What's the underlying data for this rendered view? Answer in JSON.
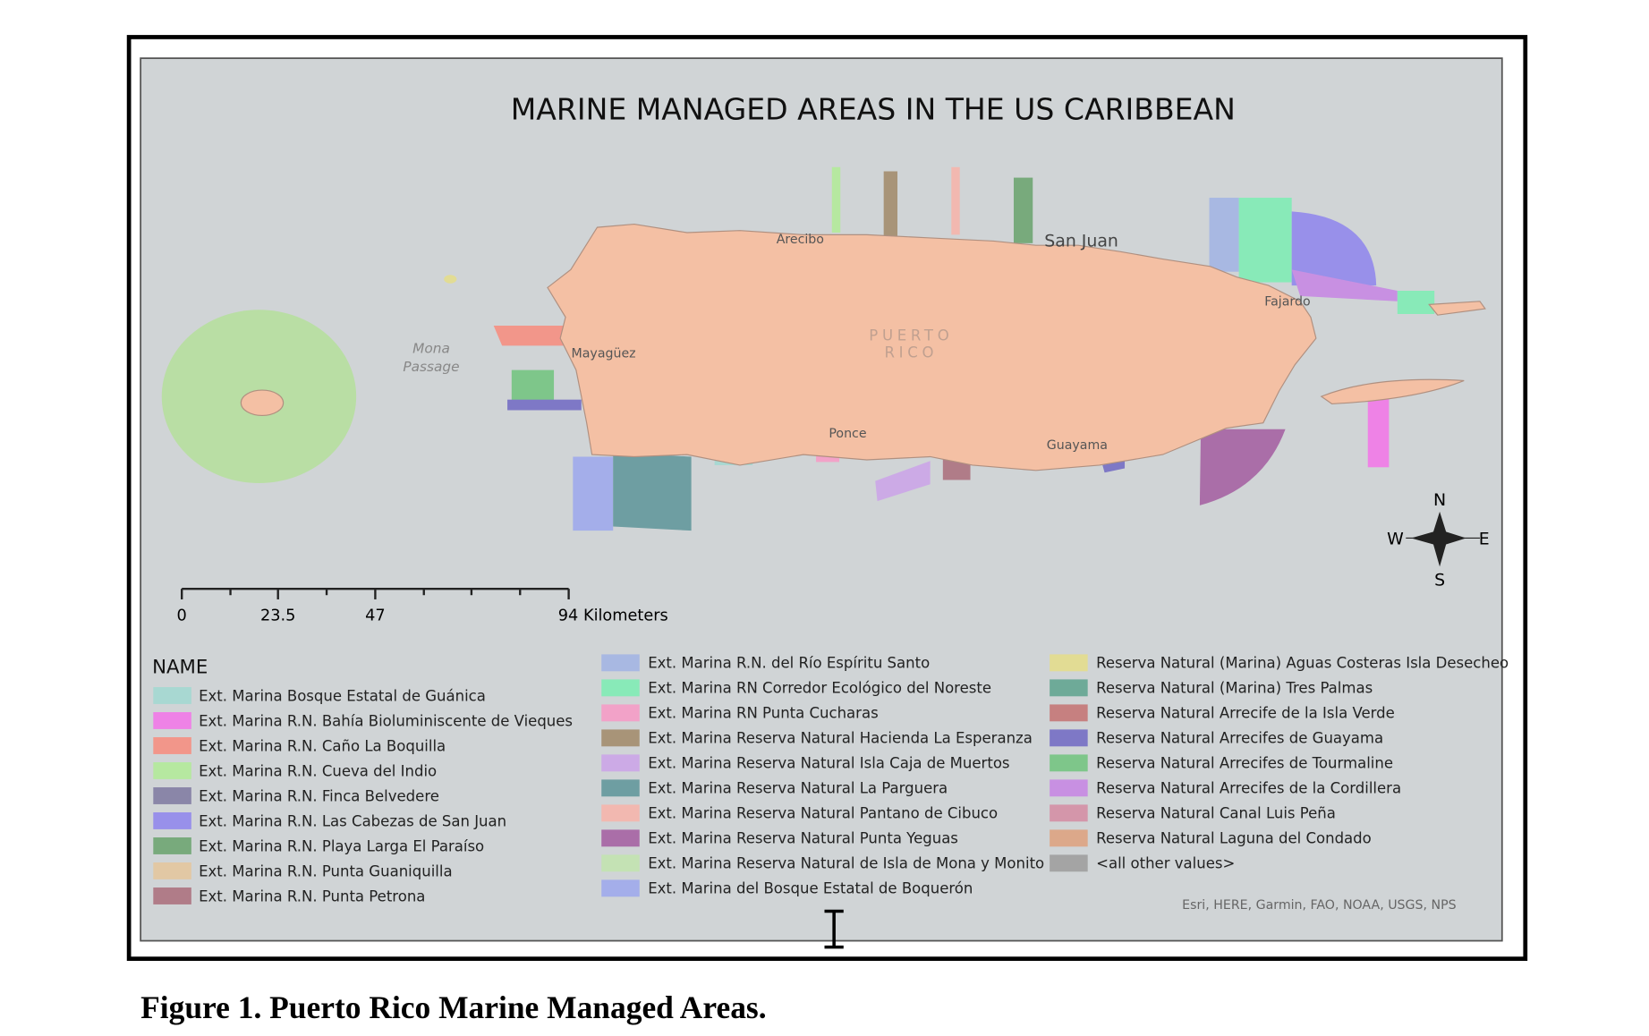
{
  "map": {
    "title": "MARINE MANAGED AREAS IN THE US CARIBBEAN",
    "places": {
      "arecibo": "Arecibo",
      "san_juan": "San Juan",
      "fajardo": "Fajardo",
      "mayaguez": "Mayagüez",
      "puerto": "PUERTO",
      "rico": "RICO",
      "ponce": "Ponce",
      "guayama": "Guayama",
      "mona": "Mona",
      "passage": "Passage"
    },
    "compass": {
      "n": "N",
      "s": "S",
      "e": "E",
      "w": "W"
    },
    "scale_bar": {
      "labels": [
        "0",
        "23.5",
        "47",
        "94 Kilometers"
      ]
    },
    "attribution": "Esri, HERE, Garmin, FAO, NOAA, USGS, NPS"
  },
  "legend": {
    "title": "NAME",
    "columns": [
      {
        "items": [
          {
            "label": "Ext. Marina Bosque Estatal de Guánica",
            "color": "#a8d8d2"
          },
          {
            "label": "Ext. Marina R.N. Bahía Bioluminiscente de Vieques",
            "color": "#ee82e6"
          },
          {
            "label": "Ext. Marina R.N. Caño La Boquilla",
            "color": "#f2968a"
          },
          {
            "label": "Ext. Marina R.N. Cueva del Indio",
            "color": "#b6e8a0"
          },
          {
            "label": "Ext. Marina R.N. Finca Belvedere",
            "color": "#8a86a8"
          },
          {
            "label": "Ext. Marina R.N. Las Cabezas de San Juan",
            "color": "#9890ea"
          },
          {
            "label": "Ext. Marina R.N. Playa Larga El Paraíso",
            "color": "#78aa7c"
          },
          {
            "label": "Ext. Marina R.N. Punta Guaniquilla",
            "color": "#e2c8a4"
          },
          {
            "label": "Ext. Marina R.N. Punta Petrona",
            "color": "#b07c88"
          }
        ]
      },
      {
        "items": [
          {
            "label": "Ext. Marina R.N. del Río Espíritu Santo",
            "color": "#a8b8e2"
          },
          {
            "label": "Ext. Marina RN Corredor Ecológico del Noreste",
            "color": "#88eab8"
          },
          {
            "label": "Ext. Marina RN Punta Cucharas",
            "color": "#f2a2c8"
          },
          {
            "label": "Ext. Marina Reserva Natural Hacienda La Esperanza",
            "color": "#a89478"
          },
          {
            "label": "Ext. Marina Reserva Natural Isla Caja de Muertos",
            "color": "#ccaae6"
          },
          {
            "label": "Ext. Marina Reserva Natural La Parguera",
            "color": "#6e9ea2"
          },
          {
            "label": "Ext. Marina Reserva Natural Pantano de Cibuco",
            "color": "#f2b8b0"
          },
          {
            "label": "Ext. Marina Reserva Natural Punta Yeguas",
            "color": "#aa6ea8"
          },
          {
            "label": "Ext. Marina Reserva Natural de Isla de Mona y Monito",
            "color": "#c4e2b4"
          },
          {
            "label": "Ext. Marina del Bosque Estatal de Boquerón",
            "color": "#a4aeea"
          }
        ]
      },
      {
        "items": [
          {
            "label": "Reserva Natural (Marina) Aguas Costeras Isla Desecheo",
            "color": "#e2dc94"
          },
          {
            "label": "Reserva Natural (Marina) Tres Palmas",
            "color": "#6eaa98"
          },
          {
            "label": "Reserva Natural Arrecife de la Isla Verde",
            "color": "#c68080"
          },
          {
            "label": "Reserva Natural Arrecifes de Guayama",
            "color": "#7e78c6"
          },
          {
            "label": "Reserva Natural Arrecifes de Tourmaline",
            "color": "#7ec68a"
          },
          {
            "label": "Reserva Natural Arrecifes de la Cordillera",
            "color": "#c890e2"
          },
          {
            "label": "Reserva Natural Canal Luis Peña",
            "color": "#d496aa"
          },
          {
            "label": "Reserva Natural Laguna del Condado",
            "color": "#dca88a"
          },
          {
            "label": "<all other values>",
            "color": "#a4a4a4"
          }
        ]
      }
    ]
  },
  "caption": "Figure 1. Puerto Rico Marine Managed Areas."
}
